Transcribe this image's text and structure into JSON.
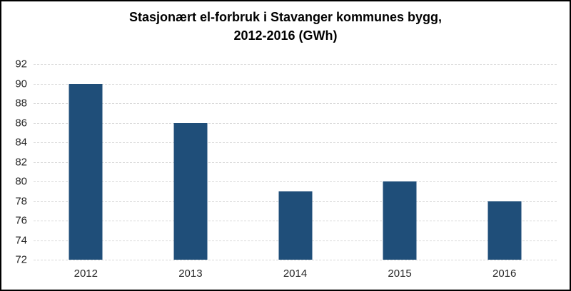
{
  "window": {
    "background": "#ffffff",
    "frame_border_color": "#000000"
  },
  "chart_data": {
    "type": "bar",
    "title": "Stasjonært el-forbruk i Stavanger kommunes bygg, 2012-2016 (GWh)",
    "title_lines": [
      "Stasjonært el-forbruk i Stavanger kommunes bygg,",
      "2012-2016 (GWh)"
    ],
    "categories": [
      "2012",
      "2013",
      "2014",
      "2015",
      "2016"
    ],
    "values": [
      90,
      86,
      79,
      80,
      78
    ],
    "xlabel": "",
    "ylabel": "",
    "ylim": [
      72,
      92
    ],
    "yticks": [
      92,
      90,
      88,
      86,
      84,
      82,
      80,
      78,
      76,
      74,
      72
    ],
    "grid": true,
    "gridline_style": "dashed",
    "gridline_color": "#d9d9d9",
    "bar_color": "#1f4e79",
    "tick_label_color": "#262626",
    "legend": "none"
  }
}
